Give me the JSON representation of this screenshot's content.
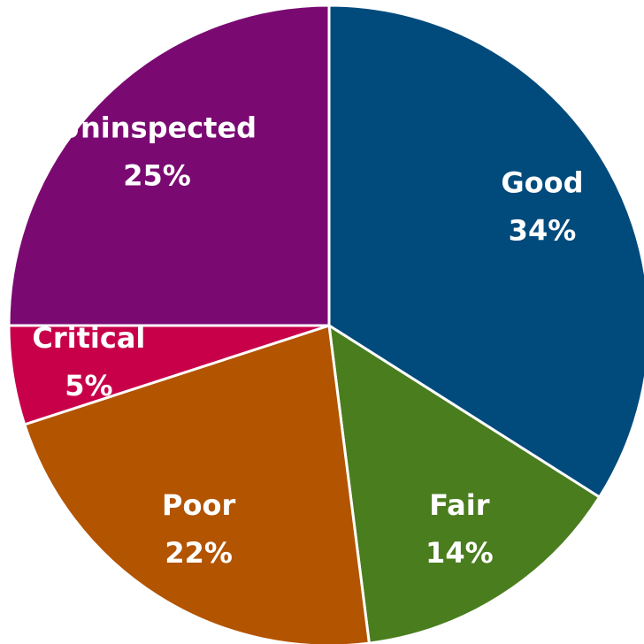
{
  "chart_data": {
    "type": "pie",
    "categories": [
      "Good",
      "Fair",
      "Poor",
      "Critical",
      "Uninspected"
    ],
    "values": [
      34,
      14,
      22,
      5,
      25
    ],
    "value_labels": [
      "34%",
      "14%",
      "22%",
      "5%",
      "25%"
    ],
    "colors": [
      "#004a7c",
      "#4a7d1e",
      "#b35400",
      "#c8004a",
      "#7a0a72"
    ]
  }
}
